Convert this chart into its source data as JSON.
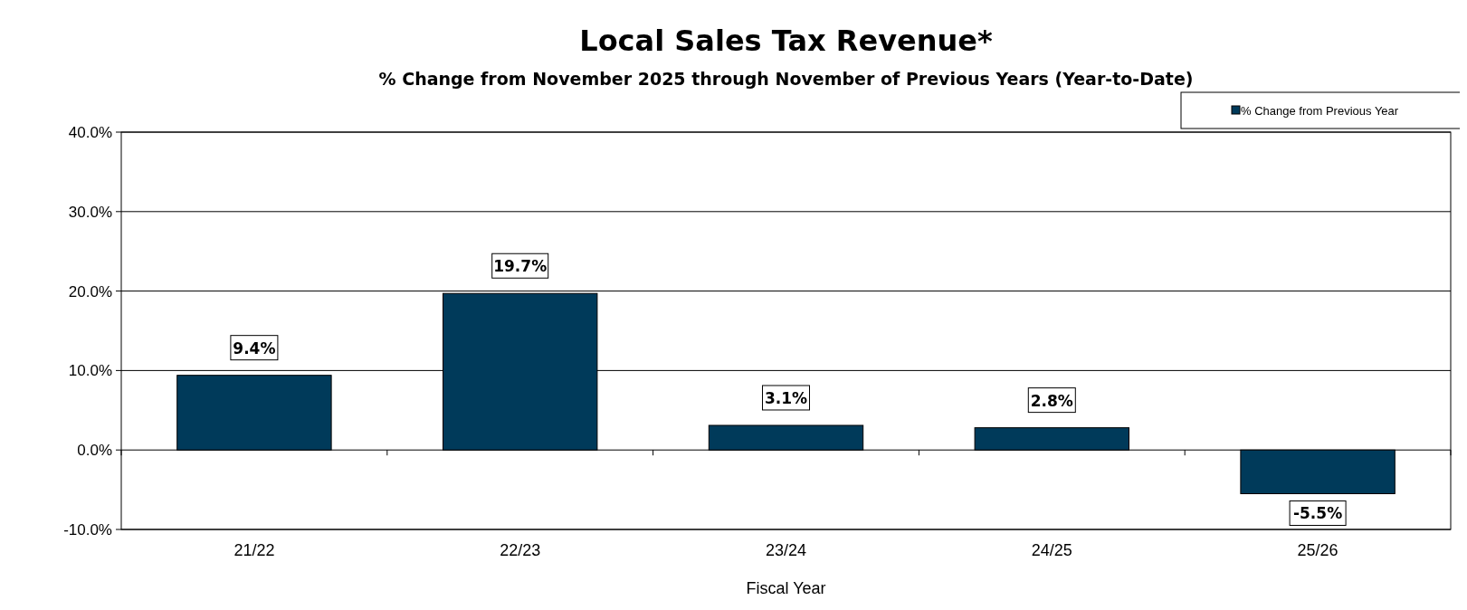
{
  "chart_data": {
    "type": "bar",
    "title": "Local Sales Tax Revenue*",
    "subtitle": "% Change from November 2025 through November of Previous Years (Year-to-Date)",
    "xlabel": "Fiscal Year",
    "categories": [
      "21/22",
      "22/23",
      "23/24",
      "24/25",
      "25/26"
    ],
    "series": [
      {
        "name": "% Change from Previous Year",
        "color": "#003a5a",
        "values": [
          9.4,
          19.7,
          3.1,
          2.8,
          -5.5
        ]
      }
    ],
    "ylim": [
      -10,
      40
    ],
    "yticks": [
      {
        "value": -10,
        "label": "-10.0%"
      },
      {
        "value": 0,
        "label": "0.0%"
      },
      {
        "value": 10,
        "label": "10.0%"
      },
      {
        "value": 20,
        "label": "20.0%"
      },
      {
        "value": 30,
        "label": "30.0%"
      },
      {
        "value": 40,
        "label": "40.0%"
      }
    ],
    "value_labels": [
      "9.4%",
      "19.7%",
      "3.1%",
      "2.8%",
      "-5.5%"
    ],
    "grid": "y",
    "legend": "top right"
  }
}
